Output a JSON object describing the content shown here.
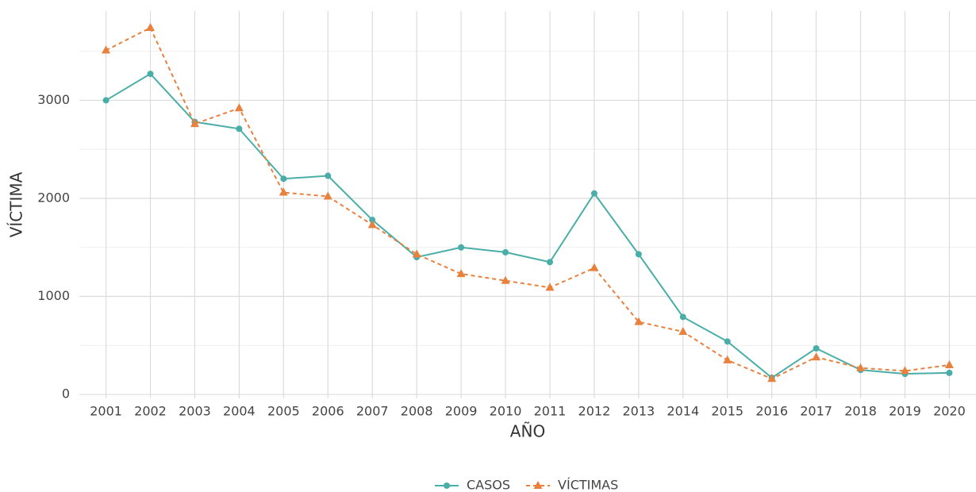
{
  "chart_data": {
    "type": "line",
    "x_label": "AÑO",
    "y_label": "VÍCTIMA",
    "categories": [
      "2001",
      "2002",
      "2003",
      "2004",
      "2005",
      "2006",
      "2007",
      "2008",
      "2009",
      "2010",
      "2011",
      "2012",
      "2013",
      "2014",
      "2015",
      "2016",
      "2017",
      "2018",
      "2019",
      "2020"
    ],
    "series": [
      {
        "name": "CASOS",
        "color": "#4aaea8",
        "marker": "circle",
        "dash": "solid",
        "values": [
          3000,
          3270,
          2780,
          2710,
          2200,
          2230,
          1780,
          1400,
          1500,
          1450,
          1350,
          2050,
          1430,
          790,
          540,
          170,
          470,
          250,
          210,
          220
        ]
      },
      {
        "name": "VÍCTIMAS",
        "color": "#e8803e",
        "marker": "triangle",
        "dash": "dashed",
        "values": [
          3510,
          3740,
          2760,
          2920,
          2060,
          2020,
          1730,
          1430,
          1230,
          1160,
          1090,
          1290,
          740,
          640,
          350,
          160,
          380,
          270,
          240,
          300
        ]
      }
    ],
    "ylim": [
      -40,
      3910
    ],
    "yticks": [
      0,
      1000,
      2000,
      3000
    ],
    "grid": true,
    "legend": "bottom"
  }
}
